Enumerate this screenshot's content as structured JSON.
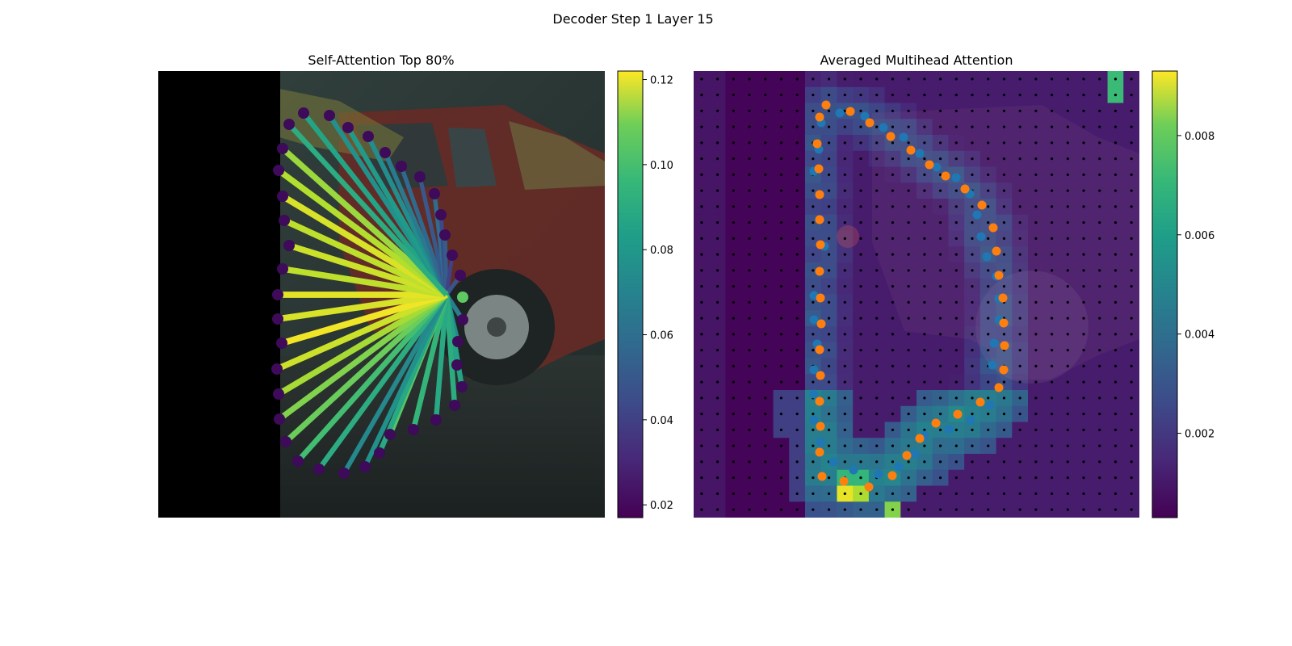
{
  "figure": {
    "suptitle": "Decoder Step 1 Layer 15"
  },
  "chart_data": [
    {
      "type": "scatter",
      "title": "Self-Attention Top 80%",
      "description_of_marks": "polygon vertices with attention lines from a query point",
      "query_point": [
        553,
        365
      ],
      "points": [
        [
          376,
          140
        ],
        [
          408,
          143
        ],
        [
          431,
          158
        ],
        [
          456,
          169
        ],
        [
          477,
          189
        ],
        [
          497,
          206
        ],
        [
          520,
          219
        ],
        [
          538,
          240
        ],
        [
          546,
          266
        ],
        [
          551,
          291
        ],
        [
          560,
          316
        ],
        [
          570,
          341
        ],
        [
          573,
          396
        ],
        [
          567,
          423
        ],
        [
          566,
          452
        ],
        [
          572,
          479
        ],
        [
          563,
          502
        ],
        [
          540,
          520
        ],
        [
          512,
          532
        ],
        [
          483,
          538
        ],
        [
          470,
          561
        ],
        [
          452,
          578
        ],
        [
          426,
          586
        ],
        [
          395,
          581
        ],
        [
          369,
          571
        ],
        [
          354,
          547
        ],
        [
          346,
          519
        ],
        [
          345,
          488
        ],
        [
          343,
          457
        ],
        [
          349,
          425
        ],
        [
          344,
          395
        ],
        [
          344,
          365
        ],
        [
          350,
          333
        ],
        [
          358,
          304
        ],
        [
          352,
          273
        ],
        [
          350,
          243
        ],
        [
          345,
          211
        ],
        [
          350,
          184
        ],
        [
          358,
          154
        ]
      ],
      "weights": [
        0.078,
        0.07,
        0.074,
        0.068,
        0.06,
        0.052,
        0.046,
        0.054,
        0.04,
        0.048,
        0.038,
        0.044,
        0.062,
        0.066,
        0.074,
        0.078,
        0.082,
        0.08,
        0.086,
        0.094,
        0.08,
        0.07,
        0.066,
        0.082,
        0.09,
        0.098,
        0.102,
        0.108,
        0.114,
        0.12,
        0.116,
        0.118,
        0.112,
        0.114,
        0.112,
        0.116,
        0.11,
        0.106,
        0.082
      ],
      "colorbar": {
        "ticks": [
          "0.02",
          "0.04",
          "0.06",
          "0.08",
          "0.10",
          "0.12"
        ],
        "range": [
          0.017,
          0.122
        ]
      }
    },
    {
      "type": "heatmap",
      "title": "Averaged Multihead Attention",
      "grid_size": [
        28,
        28
      ],
      "colorbar": {
        "ticks": [
          "0.002",
          "0.004",
          "0.006",
          "0.008"
        ],
        "range": [
          0.0003,
          0.0093
        ]
      },
      "blue_points": [
        [
          1014,
          185
        ],
        [
          1008,
          212
        ],
        [
          1021,
          305
        ],
        [
          1008,
          366
        ],
        [
          1008,
          396
        ],
        [
          1012,
          426
        ],
        [
          1008,
          458
        ],
        [
          1008,
          488
        ],
        [
          1008,
          520
        ],
        [
          1016,
          548
        ],
        [
          1032,
          572
        ],
        [
          1057,
          582
        ],
        [
          1088,
          587
        ],
        [
          1113,
          578
        ],
        [
          1133,
          562
        ],
        [
          1145,
          539
        ],
        [
          1175,
          532
        ],
        [
          1202,
          520
        ],
        [
          1226,
          502
        ],
        [
          1229,
          452
        ],
        [
          1231,
          425
        ],
        [
          1237,
          396
        ],
        [
          1237,
          370
        ],
        [
          1234,
          342
        ],
        [
          1222,
          318
        ],
        [
          1215,
          293
        ],
        [
          1210,
          266
        ],
        [
          1201,
          240
        ],
        [
          1184,
          220
        ],
        [
          1160,
          207
        ],
        [
          1139,
          190
        ],
        [
          1119,
          170
        ],
        [
          1094,
          158
        ],
        [
          1071,
          144
        ],
        [
          1040,
          140
        ],
        [
          1017,
          152
        ]
      ],
      "orange_points": [
        [
          1023,
          130
        ],
        [
          1053,
          138
        ],
        [
          1015,
          145
        ],
        [
          1077,
          152
        ],
        [
          1103,
          169
        ],
        [
          1012,
          178
        ],
        [
          1128,
          186
        ],
        [
          1014,
          209
        ],
        [
          1151,
          204
        ],
        [
          1171,
          218
        ],
        [
          1015,
          241
        ],
        [
          1195,
          234
        ],
        [
          1216,
          254
        ],
        [
          1015,
          272
        ],
        [
          1230,
          282
        ],
        [
          1016,
          303
        ],
        [
          1234,
          311
        ],
        [
          1015,
          336
        ],
        [
          1237,
          341
        ],
        [
          1016,
          369
        ],
        [
          1242,
          369
        ],
        [
          1017,
          401
        ],
        [
          1243,
          400
        ],
        [
          1015,
          433
        ],
        [
          1244,
          428
        ],
        [
          1016,
          465
        ],
        [
          1243,
          458
        ],
        [
          1015,
          497
        ],
        [
          1237,
          480
        ],
        [
          1214,
          498
        ],
        [
          1186,
          513
        ],
        [
          1016,
          528
        ],
        [
          1159,
          524
        ],
        [
          1139,
          543
        ],
        [
          1015,
          560
        ],
        [
          1123,
          564
        ],
        [
          1105,
          589
        ],
        [
          1018,
          590
        ],
        [
          1045,
          596
        ],
        [
          1076,
          603
        ]
      ],
      "peak_cells": [
        {
          "col": 9,
          "row": 26,
          "v": 0.009
        },
        {
          "col": 10,
          "row": 26,
          "v": 0.0082
        },
        {
          "col": 12,
          "row": 27,
          "v": 0.0076
        },
        {
          "col": 26,
          "row": 0,
          "v": 0.0064
        },
        {
          "col": 26,
          "row": 1,
          "v": 0.0064
        },
        {
          "col": 9,
          "row": 25,
          "v": 0.0062
        },
        {
          "col": 10,
          "row": 25,
          "v": 0.0062
        }
      ]
    }
  ],
  "colors": {
    "blue_point": "#1f77b4",
    "orange_point": "#ff7f0e",
    "poly_point": "#3e0a5a",
    "query_point": "#5ec962"
  }
}
